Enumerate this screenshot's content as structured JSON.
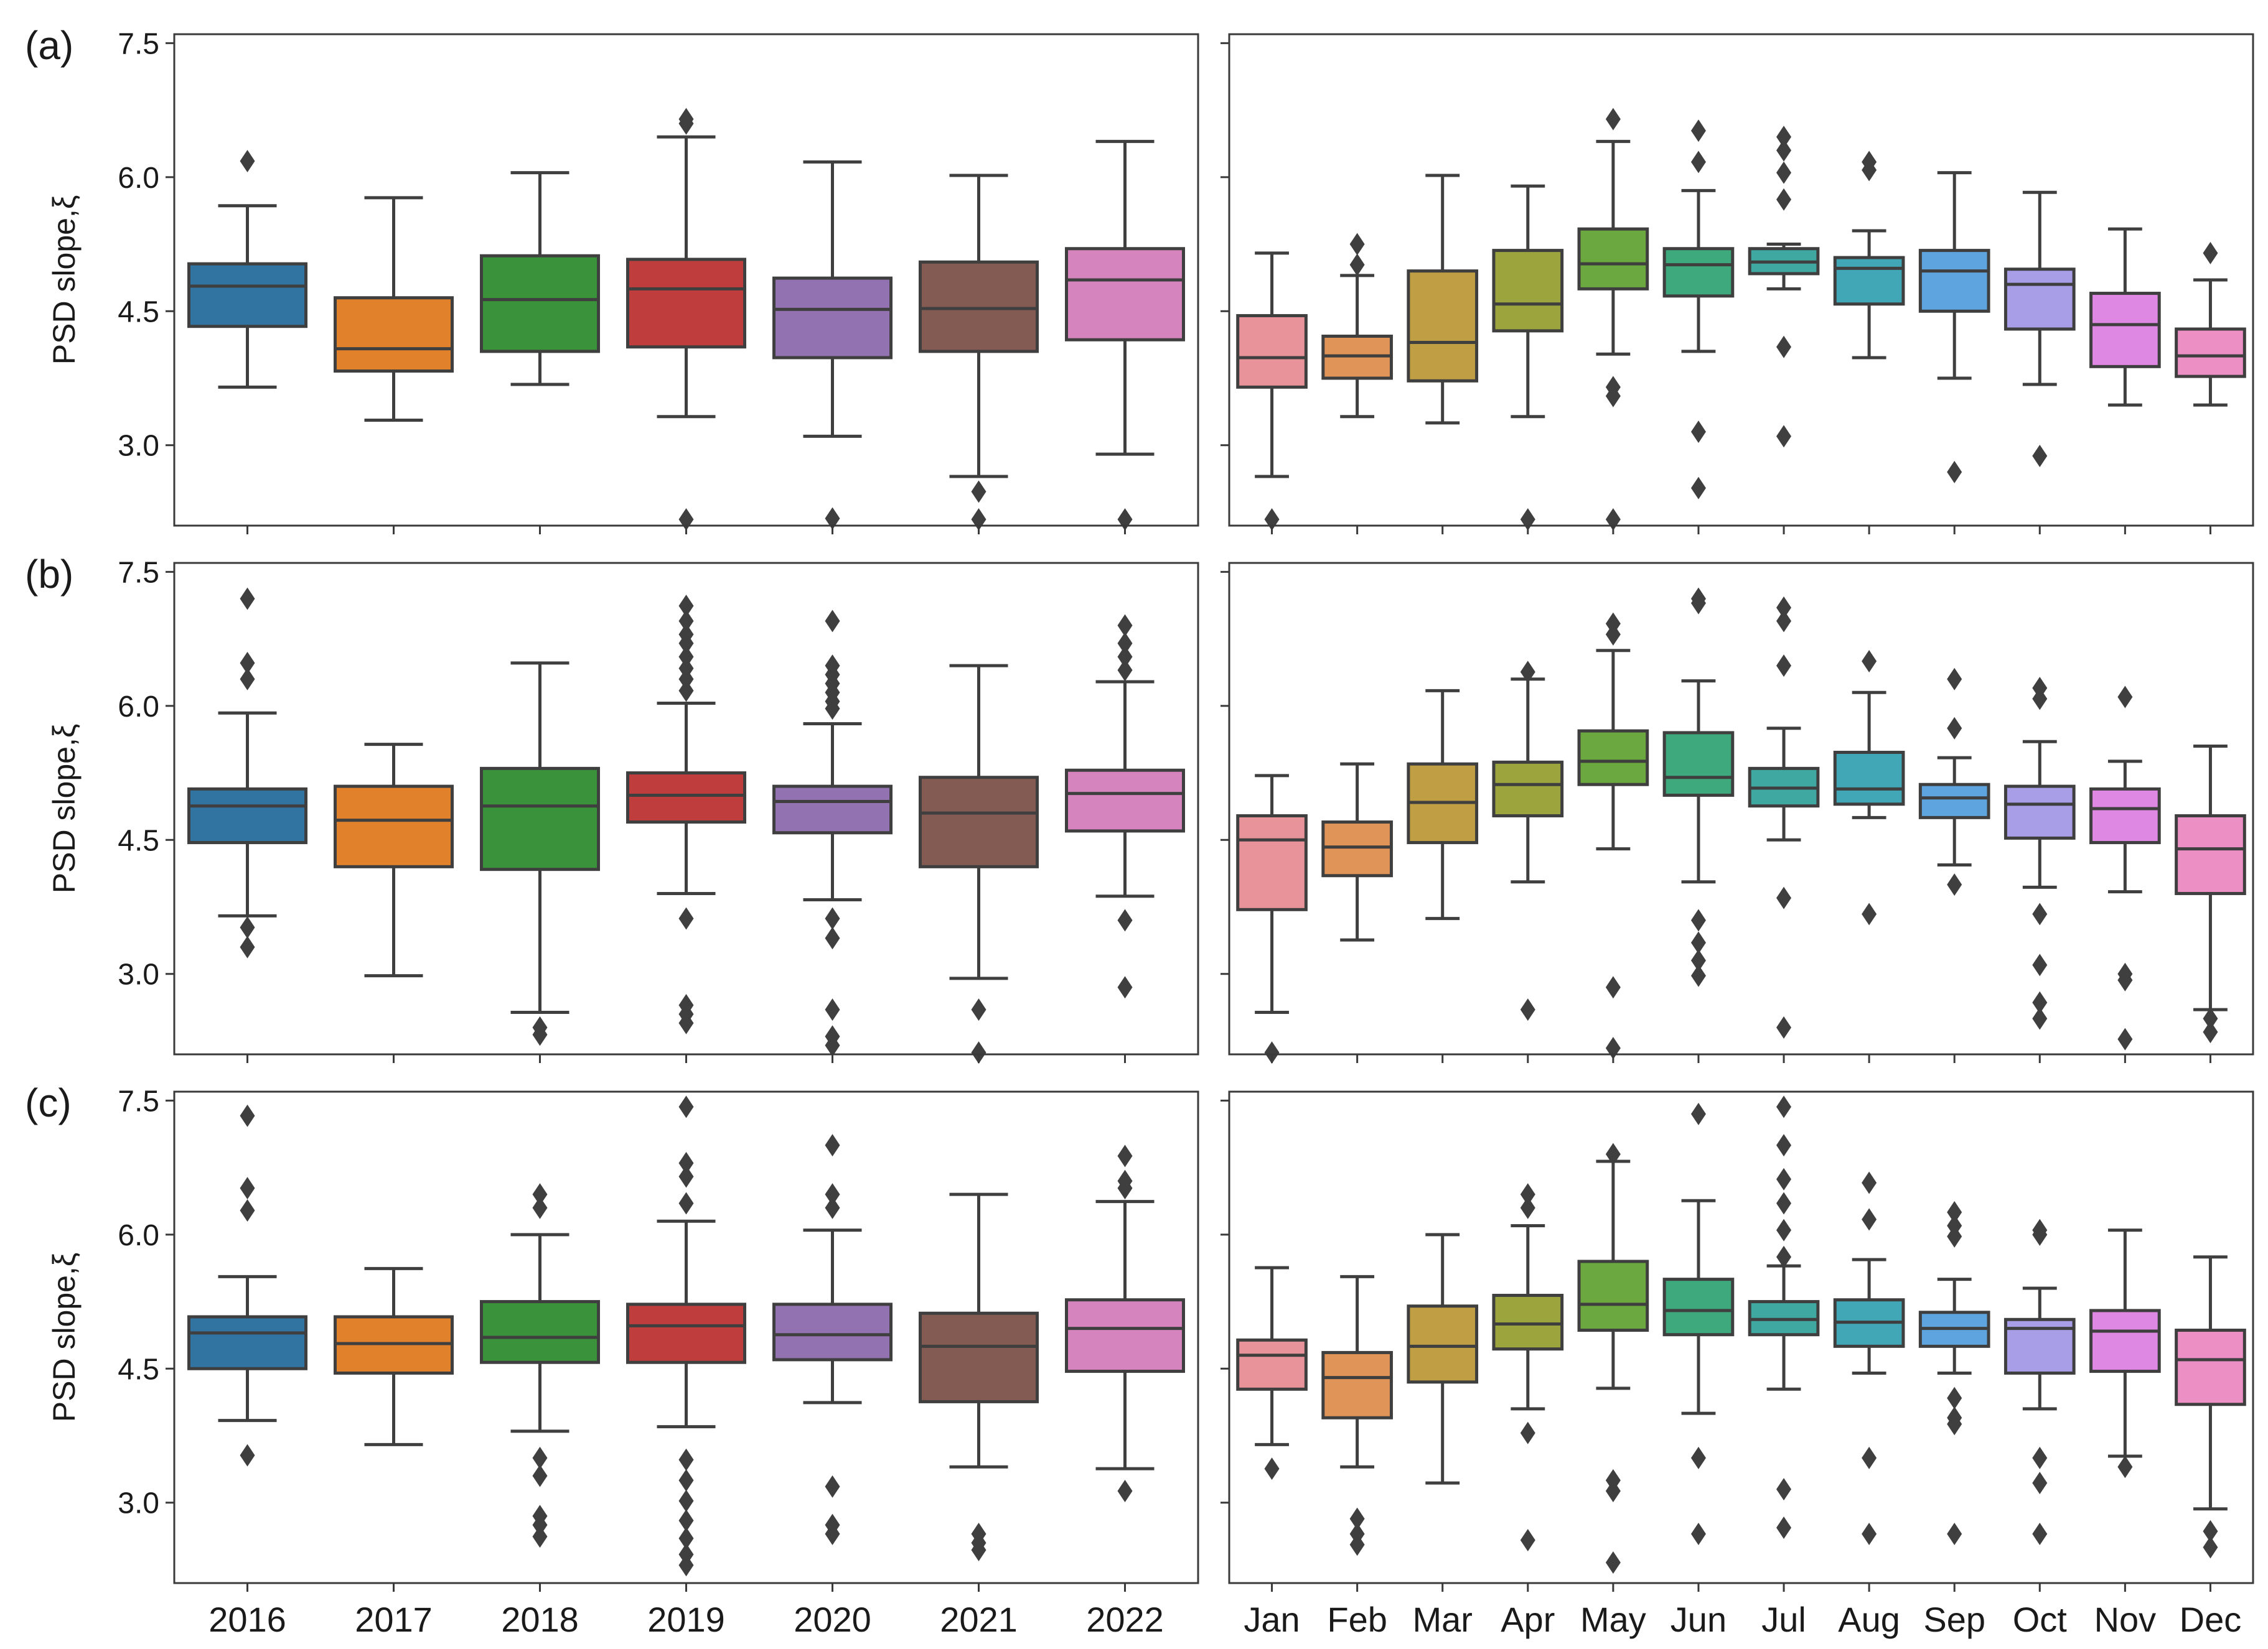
{
  "chart_data": {
    "type": "box",
    "ylim": [
      2.1,
      7.6
    ],
    "yticks": [
      3.0,
      4.5,
      6.0,
      7.5
    ],
    "ylabel": "PSD slope,ξ",
    "year_categories": [
      "2016",
      "2017",
      "2018",
      "2019",
      "2020",
      "2021",
      "2022"
    ],
    "month_categories": [
      "Jan",
      "Feb",
      "Mar",
      "Apr",
      "May",
      "Jun",
      "Jul",
      "Aug",
      "Sep",
      "Oct",
      "Nov",
      "Dec"
    ],
    "year_colors": [
      "#3274a1",
      "#e1812c",
      "#3a923a",
      "#c03d3e",
      "#9372b2",
      "#845b53",
      "#d684bd"
    ],
    "month_colors": [
      "#e8929a",
      "#e19458",
      "#bf9e44",
      "#9ca43e",
      "#6ba83f",
      "#3ea97c",
      "#3fa8a0",
      "#41a7b6",
      "#5ea5e0",
      "#a89ee8",
      "#df88e3",
      "#ec8fc4"
    ],
    "panels": [
      {
        "label": "(a)",
        "years": [
          {
            "q1": 4.33,
            "median": 4.78,
            "q3": 5.03,
            "whislo": 3.65,
            "whishi": 5.68,
            "fliers": [
              6.18
            ]
          },
          {
            "q1": 3.83,
            "median": 4.08,
            "q3": 4.65,
            "whislo": 3.28,
            "whishi": 5.77,
            "fliers": []
          },
          {
            "q1": 4.05,
            "median": 4.63,
            "q3": 5.12,
            "whislo": 3.68,
            "whishi": 6.05,
            "fliers": []
          },
          {
            "q1": 4.1,
            "median": 4.75,
            "q3": 5.08,
            "whislo": 3.32,
            "whishi": 6.45,
            "fliers": [
              6.65,
              6.6,
              2.17
            ]
          },
          {
            "q1": 3.98,
            "median": 4.52,
            "q3": 4.87,
            "whislo": 3.1,
            "whishi": 6.17,
            "fliers": [
              2.18
            ]
          },
          {
            "q1": 4.05,
            "median": 4.53,
            "q3": 5.05,
            "whislo": 2.65,
            "whishi": 6.02,
            "fliers": [
              2.48,
              2.17
            ]
          },
          {
            "q1": 4.18,
            "median": 4.85,
            "q3": 5.2,
            "whislo": 2.9,
            "whishi": 6.4,
            "fliers": [
              2.17
            ]
          }
        ],
        "months": [
          {
            "q1": 3.65,
            "median": 3.98,
            "q3": 4.45,
            "whislo": 2.65,
            "whishi": 5.15,
            "fliers": [
              2.17
            ]
          },
          {
            "q1": 3.75,
            "median": 4.0,
            "q3": 4.22,
            "whislo": 3.32,
            "whishi": 4.9,
            "fliers": [
              5.02,
              5.25
            ]
          },
          {
            "q1": 3.72,
            "median": 4.15,
            "q3": 4.95,
            "whislo": 3.25,
            "whishi": 6.02,
            "fliers": []
          },
          {
            "q1": 4.28,
            "median": 4.58,
            "q3": 5.18,
            "whislo": 3.32,
            "whishi": 5.9,
            "fliers": [
              2.17
            ]
          },
          {
            "q1": 4.75,
            "median": 5.03,
            "q3": 5.42,
            "whislo": 4.02,
            "whishi": 6.4,
            "fliers": [
              6.65,
              3.65,
              3.55,
              2.17
            ]
          },
          {
            "q1": 4.67,
            "median": 5.02,
            "q3": 5.2,
            "whislo": 4.05,
            "whishi": 5.85,
            "fliers": [
              6.52,
              6.17,
              3.15,
              2.52
            ]
          },
          {
            "q1": 4.92,
            "median": 5.05,
            "q3": 5.2,
            "whislo": 4.75,
            "whishi": 5.25,
            "fliers": [
              6.45,
              6.3,
              6.05,
              5.75,
              4.1,
              3.1
            ]
          },
          {
            "q1": 4.58,
            "median": 4.98,
            "q3": 5.1,
            "whislo": 3.98,
            "whishi": 5.4,
            "fliers": [
              6.17,
              6.08
            ]
          },
          {
            "q1": 4.5,
            "median": 4.95,
            "q3": 5.18,
            "whislo": 3.75,
            "whishi": 6.05,
            "fliers": [
              2.7
            ]
          },
          {
            "q1": 4.3,
            "median": 4.8,
            "q3": 4.97,
            "whislo": 3.68,
            "whishi": 5.83,
            "fliers": [
              2.88
            ]
          },
          {
            "q1": 3.88,
            "median": 4.35,
            "q3": 4.7,
            "whislo": 3.45,
            "whishi": 5.42,
            "fliers": []
          },
          {
            "q1": 3.77,
            "median": 4.0,
            "q3": 4.3,
            "whislo": 3.45,
            "whishi": 4.85,
            "fliers": [
              5.15
            ]
          }
        ]
      },
      {
        "label": "(b)",
        "years": [
          {
            "q1": 4.47,
            "median": 4.88,
            "q3": 5.07,
            "whislo": 3.65,
            "whishi": 5.92,
            "fliers": [
              7.2,
              6.48,
              6.3,
              3.52,
              3.3
            ]
          },
          {
            "q1": 4.2,
            "median": 4.72,
            "q3": 5.1,
            "whislo": 2.98,
            "whishi": 5.57,
            "fliers": []
          },
          {
            "q1": 4.17,
            "median": 4.88,
            "q3": 5.3,
            "whislo": 2.57,
            "whishi": 6.48,
            "fliers": [
              2.4,
              2.32
            ]
          },
          {
            "q1": 4.7,
            "median": 5.0,
            "q3": 5.25,
            "whislo": 3.9,
            "whishi": 6.03,
            "fliers": [
              7.12,
              6.95,
              6.8,
              6.7,
              6.55,
              6.42,
              6.3,
              6.17,
              3.62,
              2.65,
              2.55,
              2.45
            ]
          },
          {
            "q1": 4.58,
            "median": 4.93,
            "q3": 5.1,
            "whislo": 3.83,
            "whishi": 5.8,
            "fliers": [
              6.95,
              6.45,
              6.35,
              6.25,
              6.15,
              6.05,
              5.97,
              3.62,
              3.4,
              2.6,
              2.3,
              2.2
            ]
          },
          {
            "q1": 4.2,
            "median": 4.8,
            "q3": 5.2,
            "whislo": 2.95,
            "whishi": 6.45,
            "fliers": [
              2.6,
              2.12
            ]
          },
          {
            "q1": 4.6,
            "median": 5.02,
            "q3": 5.28,
            "whislo": 3.87,
            "whishi": 6.27,
            "fliers": [
              6.9,
              6.7,
              6.55,
              6.4,
              3.6,
              2.85
            ]
          }
        ],
        "months": [
          {
            "q1": 3.72,
            "median": 4.5,
            "q3": 4.77,
            "whislo": 2.57,
            "whishi": 5.22,
            "fliers": [
              2.12
            ]
          },
          {
            "q1": 4.1,
            "median": 4.42,
            "q3": 4.7,
            "whislo": 3.38,
            "whishi": 5.35,
            "fliers": []
          },
          {
            "q1": 4.47,
            "median": 4.92,
            "q3": 5.35,
            "whislo": 3.62,
            "whishi": 6.17,
            "fliers": []
          },
          {
            "q1": 4.77,
            "median": 5.12,
            "q3": 5.37,
            "whislo": 4.03,
            "whishi": 6.3,
            "fliers": [
              6.38,
              2.6
            ]
          },
          {
            "q1": 5.12,
            "median": 5.38,
            "q3": 5.72,
            "whislo": 4.4,
            "whishi": 6.62,
            "fliers": [
              6.92,
              6.8,
              2.85,
              2.17
            ]
          },
          {
            "q1": 5.0,
            "median": 5.2,
            "q3": 5.7,
            "whislo": 4.03,
            "whishi": 6.28,
            "fliers": [
              7.2,
              7.15,
              3.6,
              3.35,
              3.15,
              2.98
            ]
          },
          {
            "q1": 4.88,
            "median": 5.08,
            "q3": 5.3,
            "whislo": 4.5,
            "whishi": 5.75,
            "fliers": [
              7.1,
              6.95,
              6.45,
              3.85,
              2.4
            ]
          },
          {
            "q1": 4.9,
            "median": 5.07,
            "q3": 5.48,
            "whislo": 4.75,
            "whishi": 6.15,
            "fliers": [
              6.5,
              3.67
            ]
          },
          {
            "q1": 4.75,
            "median": 4.97,
            "q3": 5.12,
            "whislo": 4.22,
            "whishi": 5.42,
            "fliers": [
              6.3,
              5.75,
              4.0
            ]
          },
          {
            "q1": 4.52,
            "median": 4.9,
            "q3": 5.1,
            "whislo": 3.97,
            "whishi": 5.6,
            "fliers": [
              6.2,
              6.08,
              3.67,
              3.1,
              2.68,
              2.5
            ]
          },
          {
            "q1": 4.47,
            "median": 4.85,
            "q3": 5.07,
            "whislo": 3.92,
            "whishi": 5.38,
            "fliers": [
              6.1,
              3.0,
              2.93,
              2.27
            ]
          },
          {
            "q1": 3.9,
            "median": 4.4,
            "q3": 4.77,
            "whislo": 2.6,
            "whishi": 5.55,
            "fliers": [
              2.5,
              2.35
            ]
          }
        ]
      },
      {
        "label": "(c)",
        "years": [
          {
            "q1": 4.5,
            "median": 4.9,
            "q3": 5.08,
            "whislo": 3.92,
            "whishi": 5.53,
            "fliers": [
              7.33,
              6.52,
              6.27,
              3.53
            ]
          },
          {
            "q1": 4.45,
            "median": 4.78,
            "q3": 5.08,
            "whislo": 3.65,
            "whishi": 5.62,
            "fliers": []
          },
          {
            "q1": 4.57,
            "median": 4.85,
            "q3": 5.25,
            "whislo": 3.8,
            "whishi": 6.0,
            "fliers": [
              6.45,
              6.3,
              3.5,
              3.3,
              2.85,
              2.75,
              2.62
            ]
          },
          {
            "q1": 4.57,
            "median": 4.98,
            "q3": 5.22,
            "whislo": 3.85,
            "whishi": 6.15,
            "fliers": [
              7.43,
              6.8,
              6.65,
              6.35,
              3.48,
              3.25,
              3.02,
              2.8,
              2.6,
              2.42,
              2.3
            ]
          },
          {
            "q1": 4.6,
            "median": 4.88,
            "q3": 5.22,
            "whislo": 4.12,
            "whishi": 6.05,
            "fliers": [
              7.0,
              6.45,
              6.3,
              3.18,
              2.75,
              2.65
            ]
          },
          {
            "q1": 4.13,
            "median": 4.75,
            "q3": 5.12,
            "whislo": 3.4,
            "whishi": 6.45,
            "fliers": [
              2.65,
              2.55,
              2.47
            ]
          },
          {
            "q1": 4.47,
            "median": 4.95,
            "q3": 5.27,
            "whislo": 3.38,
            "whishi": 6.37,
            "fliers": [
              6.88,
              6.6,
              6.52,
              3.13
            ]
          }
        ],
        "months": [
          {
            "q1": 4.27,
            "median": 4.65,
            "q3": 4.82,
            "whislo": 3.65,
            "whishi": 5.63,
            "fliers": [
              3.38
            ]
          },
          {
            "q1": 3.95,
            "median": 4.4,
            "q3": 4.68,
            "whislo": 3.4,
            "whishi": 5.53,
            "fliers": [
              2.82,
              2.65,
              2.53
            ]
          },
          {
            "q1": 4.35,
            "median": 4.75,
            "q3": 5.2,
            "whislo": 3.22,
            "whishi": 6.0,
            "fliers": []
          },
          {
            "q1": 4.72,
            "median": 5.0,
            "q3": 5.32,
            "whislo": 4.05,
            "whishi": 6.1,
            "fliers": [
              6.45,
              6.3,
              3.78,
              2.58
            ]
          },
          {
            "q1": 4.93,
            "median": 5.22,
            "q3": 5.7,
            "whislo": 4.28,
            "whishi": 6.82,
            "fliers": [
              6.9,
              3.25,
              3.13,
              2.33
            ]
          },
          {
            "q1": 4.88,
            "median": 5.15,
            "q3": 5.5,
            "whislo": 4.0,
            "whishi": 6.38,
            "fliers": [
              7.35,
              3.5,
              2.65
            ]
          },
          {
            "q1": 4.88,
            "median": 5.05,
            "q3": 5.25,
            "whislo": 4.27,
            "whishi": 5.65,
            "fliers": [
              7.43,
              7.0,
              6.62,
              6.35,
              6.05,
              5.75,
              3.15,
              2.72
            ]
          },
          {
            "q1": 4.75,
            "median": 5.02,
            "q3": 5.27,
            "whislo": 4.45,
            "whishi": 5.72,
            "fliers": [
              6.58,
              6.17,
              3.5,
              2.65
            ]
          },
          {
            "q1": 4.75,
            "median": 4.95,
            "q3": 5.13,
            "whislo": 4.45,
            "whishi": 5.5,
            "fliers": [
              6.25,
              6.1,
              5.98,
              4.17,
              3.95,
              3.88,
              2.65
            ]
          },
          {
            "q1": 4.45,
            "median": 4.95,
            "q3": 5.05,
            "whislo": 4.05,
            "whishi": 5.4,
            "fliers": [
              6.05,
              6.0,
              3.5,
              3.22,
              2.65
            ]
          },
          {
            "q1": 4.47,
            "median": 4.92,
            "q3": 5.15,
            "whislo": 3.52,
            "whishi": 6.05,
            "fliers": [
              3.4
            ]
          },
          {
            "q1": 4.1,
            "median": 4.6,
            "q3": 4.93,
            "whislo": 2.93,
            "whishi": 5.75,
            "fliers": [
              2.68,
              2.5
            ]
          }
        ]
      }
    ]
  }
}
